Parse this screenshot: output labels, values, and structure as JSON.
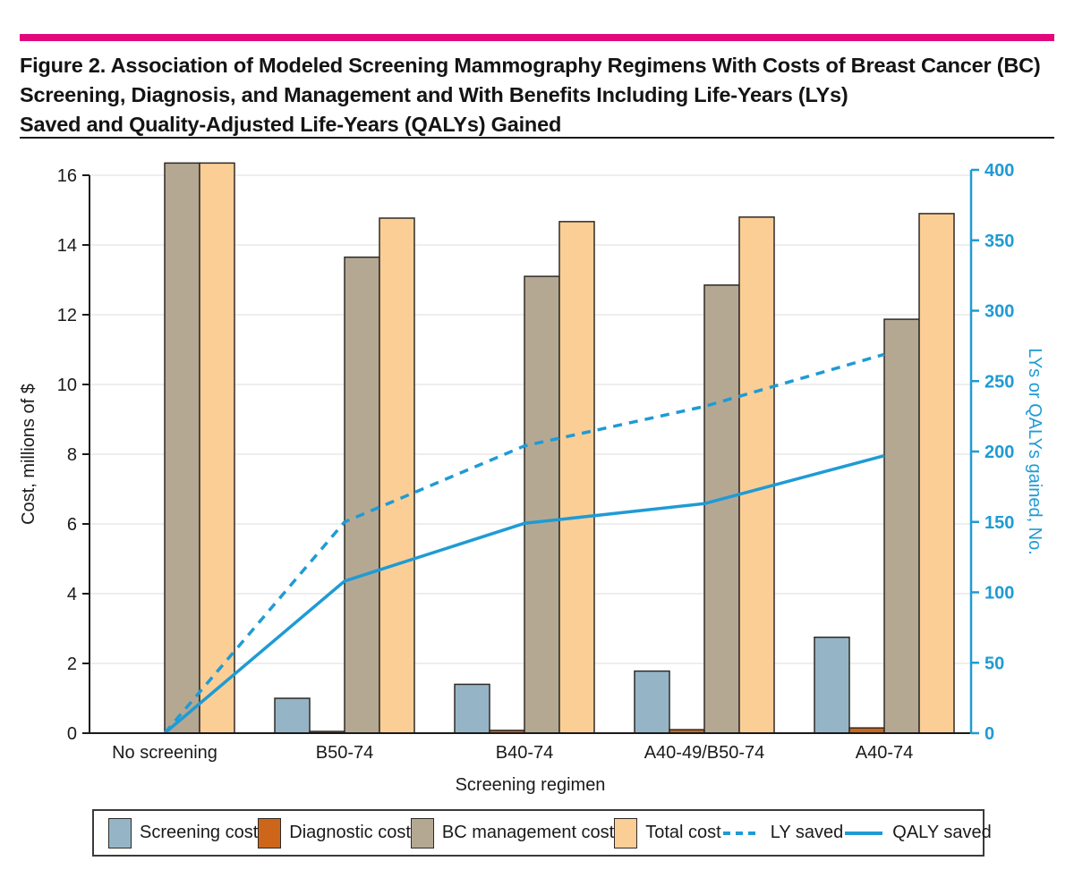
{
  "figure": {
    "title_lines": [
      "Figure 2. Association of Modeled Screening Mammography Regimens With Costs of Breast Cancer (BC)",
      "Screening, Diagnosis, and Management and With Benefits Including Life-Years (LYs)",
      "Saved and Quality-Adjusted Life-Years (QALYs) Gained"
    ]
  },
  "chart_data": {
    "type": "bar",
    "subtype": "grouped-bars-with-lines-dual-axis",
    "categories": [
      "No screening",
      "B50-74",
      "B40-74",
      "A40-49/B50-74",
      "A40-74"
    ],
    "series": [
      {
        "name": "Screening cost",
        "type": "bar",
        "axis": "left",
        "color_key": "screening",
        "values": [
          0,
          1.0,
          1.4,
          1.78,
          2.75
        ]
      },
      {
        "name": "Diagnostic cost",
        "type": "bar",
        "axis": "left",
        "color_key": "diagnostic",
        "values": [
          0,
          0.05,
          0.08,
          0.1,
          0.15
        ]
      },
      {
        "name": "BC management cost",
        "type": "bar",
        "axis": "left",
        "color_key": "management",
        "values": [
          16.35,
          13.65,
          13.1,
          12.85,
          11.87
        ]
      },
      {
        "name": "Total cost",
        "type": "bar",
        "axis": "left",
        "color_key": "total",
        "values": [
          16.35,
          14.77,
          14.67,
          14.8,
          14.9
        ]
      },
      {
        "name": "LY saved",
        "type": "line",
        "axis": "right",
        "dashed": true,
        "values": [
          0,
          150,
          204,
          232,
          269
        ]
      },
      {
        "name": "QALY saved",
        "type": "line",
        "axis": "right",
        "dashed": false,
        "values": [
          0,
          108,
          149,
          163,
          197
        ]
      }
    ],
    "xlabel": "Screening regimen",
    "ylabel_left": "Cost, millions of $",
    "ylabel_right": "LYs or QALYs gained, No.",
    "ylim_left": [
      0,
      16
    ],
    "ylim_right": [
      0,
      400
    ],
    "yticks_left": [
      0,
      2,
      4,
      6,
      8,
      10,
      12,
      14,
      16
    ],
    "yticks_right": [
      0,
      50,
      100,
      150,
      200,
      250,
      300,
      350,
      400
    ],
    "grid": true,
    "legend_position": "bottom"
  },
  "colors": {
    "accent": "#e2087c",
    "screening": "#95b5c6",
    "diagnostic": "#cd661a",
    "management": "#b5a893",
    "total": "#fbce96",
    "line": "#1f9bd4",
    "axis": "#1a1a1a",
    "grid": "#e8e8e8",
    "outline": "#2e2a26"
  }
}
